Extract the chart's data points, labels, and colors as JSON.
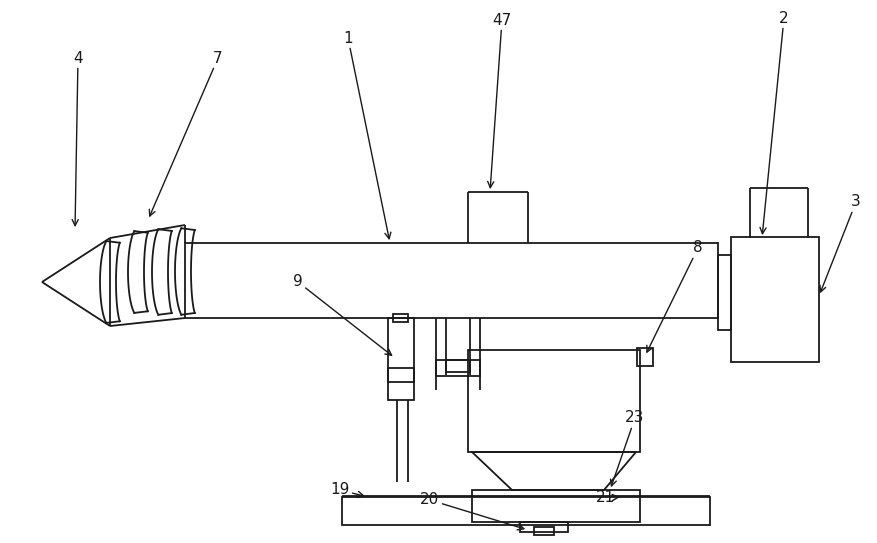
{
  "bg_color": "#ffffff",
  "line_color": "#1a1a1a",
  "line_width": 1.3,
  "fig_width": 8.78,
  "fig_height": 5.43
}
